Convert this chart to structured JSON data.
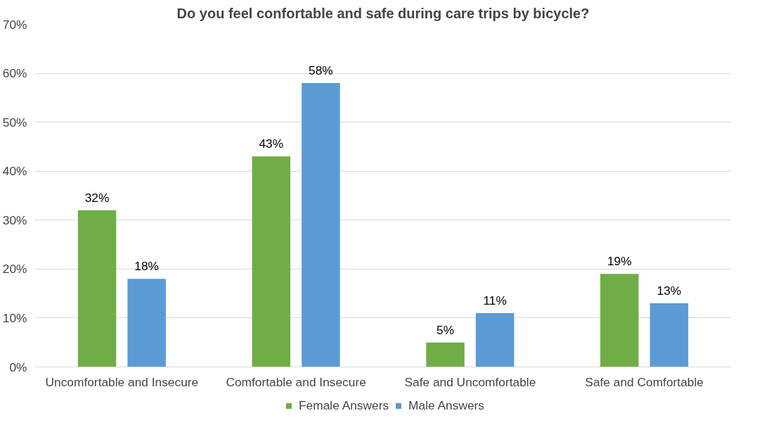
{
  "chart_data": {
    "type": "bar",
    "title": "Do you feel confortable and safe during care trips by bicycle?",
    "categories": [
      "Uncomfortable and Insecure",
      "Comfortable and Insecure",
      "Safe and Uncomfortable",
      "Safe and Comfortable"
    ],
    "series": [
      {
        "name": "Female Answers",
        "color": "#70ad47",
        "values": [
          32,
          43,
          5,
          19
        ],
        "value_labels": [
          "32%",
          "43%",
          "5%",
          "19%"
        ]
      },
      {
        "name": "Male Answers",
        "color": "#5b9bd5",
        "values": [
          18,
          58,
          11,
          13
        ],
        "value_labels": [
          "18%",
          "58%",
          "11%",
          "13%"
        ]
      }
    ],
    "ylim": [
      0,
      70
    ],
    "yticks": [
      {
        "value": 0,
        "label": "0%"
      },
      {
        "value": 10,
        "label": "10%"
      },
      {
        "value": 20,
        "label": "20%"
      },
      {
        "value": 30,
        "label": "30%"
      },
      {
        "value": 40,
        "label": "40%"
      },
      {
        "value": 50,
        "label": "50%"
      },
      {
        "value": 60,
        "label": "60%"
      },
      {
        "value": 70,
        "label": "70%"
      }
    ],
    "grid": "y",
    "legend": "bottom"
  }
}
